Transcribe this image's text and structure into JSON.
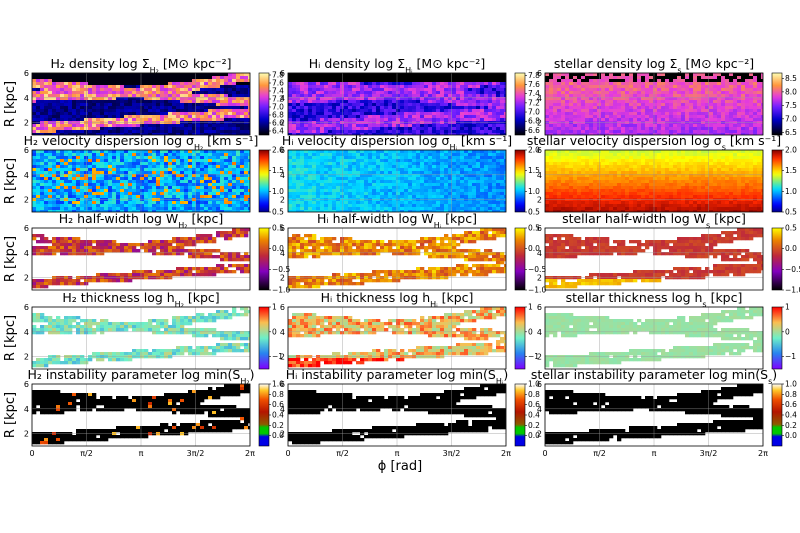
{
  "chart_data": {
    "type": "heatmap",
    "panel_grid": {
      "rows": 5,
      "cols": 3
    },
    "xlabel": "ϕ [rad]",
    "ylabel": "R [kpc]",
    "x_ticks": [
      "0",
      "π/2",
      "π",
      "3π/2",
      "2π"
    ],
    "xlim": [
      0,
      6.2832
    ],
    "ylim": [
      1,
      6
    ],
    "y_ticks": [
      "2",
      "4",
      "6"
    ],
    "grid": true,
    "rows": [
      {
        "quantity": "density",
        "colormap": "gnuplot2",
        "panels": [
          {
            "title": "H₂ density   log Σ",
            "sub": "H₂",
            "unit": " [M⊙ kpc⁻²]",
            "cb_ticks": [
              "7.8",
              "7.6",
              "7.4",
              "7.2",
              "7.0",
              "6.8",
              "6.6",
              "6.4"
            ],
            "cb_range": [
              6.3,
              7.85
            ]
          },
          {
            "title": "Hᵢ density   log Σ",
            "sub": "Hᵢ",
            "unit": " [M⊙ kpc⁻²]",
            "cb_ticks": [
              "7.8",
              "7.6",
              "7.4",
              "7.2",
              "7.0",
              "6.8",
              "6.6"
            ],
            "cb_range": [
              6.5,
              7.85
            ]
          },
          {
            "title": "stellar density   log Σ",
            "sub": "s",
            "unit": " [M⊙ kpc⁻²]",
            "cb_ticks": [
              "8.5",
              "8.0",
              "7.5",
              "7.0",
              "6.5"
            ],
            "cb_range": [
              6.4,
              8.7
            ]
          }
        ]
      },
      {
        "quantity": "velocity dispersion",
        "colormap": "jet",
        "panels": [
          {
            "title": "H₂ velocity dispersion   log σ",
            "sub": "H₂",
            "unit": " [km s⁻¹]",
            "cb_ticks": [
              "2.0",
              "1.5",
              "1.0",
              "0.5"
            ],
            "cb_range": [
              0.5,
              2.0
            ]
          },
          {
            "title": "Hᵢ velocity dispersion   log σ",
            "sub": "Hᵢ",
            "unit": " [km s⁻¹]",
            "cb_ticks": [
              "2.0",
              "1.5",
              "1.0",
              "0.5"
            ],
            "cb_range": [
              0.5,
              2.0
            ]
          },
          {
            "title": "stellar velocity dispersion   log σ",
            "sub": "s",
            "unit": " [km s⁻¹]",
            "cb_ticks": [
              "2.0",
              "1.5",
              "1.0",
              "0.5"
            ],
            "cb_range": [
              0.5,
              2.0
            ]
          }
        ]
      },
      {
        "quantity": "half-width",
        "colormap": "gnuplot",
        "panels": [
          {
            "title": "H₂ half-width   log W",
            "sub": "H₂",
            "unit": " [kpc]",
            "cb_ticks": [
              "0.5",
              "0.0",
              "−0.5",
              "−1.0"
            ],
            "cb_range": [
              -1.0,
              0.5
            ]
          },
          {
            "title": "Hᵢ half-width   log W",
            "sub": "Hᵢ",
            "unit": " [kpc]",
            "cb_ticks": [
              "0.5",
              "0.0",
              "−0.5",
              "−1.0"
            ],
            "cb_range": [
              -1.0,
              0.5
            ]
          },
          {
            "title": "stellar half-width   log W",
            "sub": "s",
            "unit": " [kpc]",
            "cb_ticks": [
              "0.5",
              "0.0",
              "−0.5",
              "−1.0"
            ],
            "cb_range": [
              -1.0,
              0.5
            ]
          }
        ]
      },
      {
        "quantity": "thickness",
        "colormap": "rainbow",
        "panels": [
          {
            "title": "H₂ thickness   log h",
            "sub": "H₂",
            "unit": " [kpc]",
            "cb_ticks": [
              "1",
              "0",
              "−1"
            ],
            "cb_range": [
              -1.5,
              1.0
            ]
          },
          {
            "title": "Hᵢ thickness   log h",
            "sub": "Hᵢ",
            "unit": " [kpc]",
            "cb_ticks": [
              "1",
              "0",
              "−1"
            ],
            "cb_range": [
              -1.5,
              1.0
            ]
          },
          {
            "title": "stellar thickness   log h",
            "sub": "s",
            "unit": " [kpc]",
            "cb_ticks": [
              "1",
              "0",
              "−1"
            ],
            "cb_range": [
              -1.5,
              1.0
            ]
          }
        ]
      },
      {
        "quantity": "instability parameter",
        "colormap": "discrete",
        "panels": [
          {
            "title": "H₂ instability parameter   log min(S",
            "sub": "H₂",
            "unit": ")",
            "cb_ticks": [
              "1.0",
              "0.8",
              "0.6",
              "0.4",
              "0.2",
              "0.0"
            ],
            "cb_range": [
              -0.2,
              1.0
            ]
          },
          {
            "title": "Hᵢ instability parameter   log min(S",
            "sub": "Hᵢ",
            "unit": ")",
            "cb_ticks": [
              "1.0",
              "0.8",
              "0.6",
              "0.4",
              "0.2",
              "0.0"
            ],
            "cb_range": [
              -0.2,
              1.0
            ]
          },
          {
            "title": "stellar instability parameter   log min(S",
            "sub": "s",
            "unit": ")",
            "cb_ticks": [
              "1.0",
              "0.8",
              "0.6",
              "0.4",
              "0.2",
              "0.0"
            ],
            "cb_range": [
              -0.2,
              1.0
            ]
          }
        ]
      }
    ]
  }
}
